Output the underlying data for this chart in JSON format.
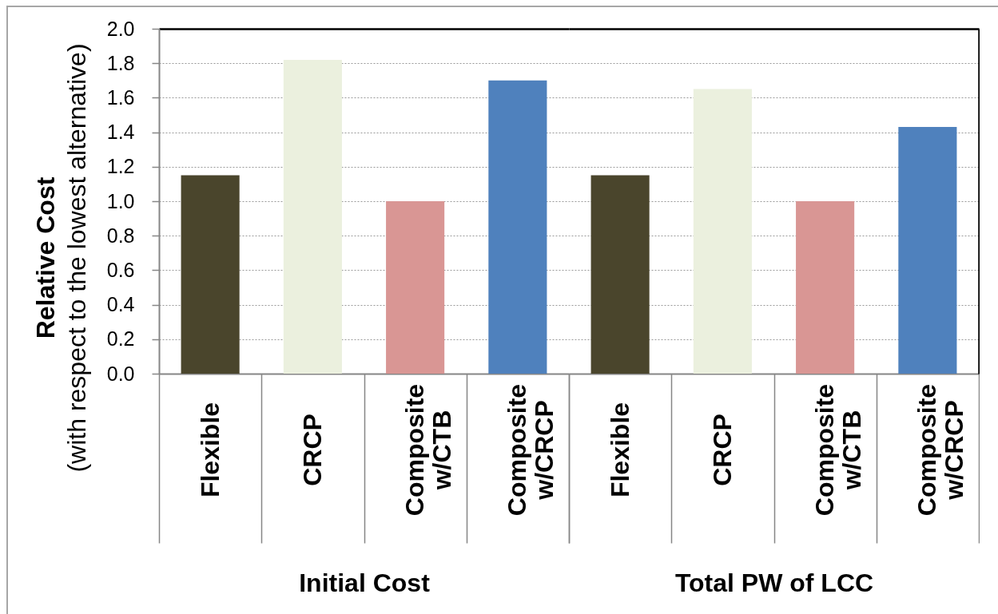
{
  "chart_data": [
    {
      "type": "bar",
      "xlabel": "Initial Cost",
      "ylabel": "Relative Cost\n(with respect to the lowest alternative)",
      "categories": [
        "Flexible",
        "CRCP",
        "Composite w/CTB",
        "Composite w/CRCP"
      ],
      "values": [
        1.15,
        1.82,
        1.0,
        1.7
      ],
      "colors": [
        "#4a452c",
        "#ebf0de",
        "#d99694",
        "#4f81bd"
      ],
      "ylim": [
        0,
        2
      ],
      "yticks": [
        {
          "value": 0,
          "label": "0.0"
        },
        0.2,
        0.4,
        0.6,
        0.8,
        {
          "value": 1,
          "label": "1.0"
        },
        1.2,
        1.4,
        1.6,
        1.8,
        {
          "value": 2,
          "label": "2.0"
        }
      ],
      "grid": "y"
    },
    {
      "type": "bar",
      "xlabel": "Total PW of LCC",
      "categories": [
        "Flexible",
        "CRCP",
        "Composite w/CTB",
        "Composite w/CRCP"
      ],
      "values": [
        1.15,
        1.65,
        1.0,
        1.43
      ],
      "colors": [
        "#4a452c",
        "#ebf0de",
        "#d99694",
        "#4f81bd"
      ],
      "ylim": [
        0,
        2
      ],
      "yticks": [
        0,
        0.2,
        0.4,
        0.6,
        0.8,
        1,
        1.2,
        1.4,
        1.6,
        1.8,
        2
      ],
      "grid": "y",
      "tick_labels": "x"
    }
  ]
}
